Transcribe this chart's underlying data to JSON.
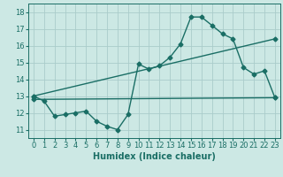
{
  "xlabel": "Humidex (Indice chaleur)",
  "background_color": "#cce8e4",
  "grid_color": "#aaccca",
  "line_color": "#1a6e65",
  "xlim": [
    -0.5,
    23.5
  ],
  "ylim": [
    10.5,
    18.5
  ],
  "xticks": [
    0,
    1,
    2,
    3,
    4,
    5,
    6,
    7,
    8,
    9,
    10,
    11,
    12,
    13,
    14,
    15,
    16,
    17,
    18,
    19,
    20,
    21,
    22,
    23
  ],
  "yticks": [
    11,
    12,
    13,
    14,
    15,
    16,
    17,
    18
  ],
  "line1_x": [
    0,
    1,
    2,
    3,
    4,
    5,
    6,
    7,
    8,
    9,
    10,
    11,
    12,
    13,
    14,
    15,
    16,
    17,
    18,
    19,
    20,
    21,
    22,
    23
  ],
  "line1_y": [
    13.0,
    12.7,
    11.8,
    11.9,
    12.0,
    12.1,
    11.5,
    11.2,
    11.0,
    11.9,
    14.9,
    14.6,
    14.8,
    15.3,
    16.1,
    17.7,
    17.7,
    17.2,
    16.7,
    16.4,
    14.7,
    14.3,
    14.5,
    12.9
  ],
  "line2_x": [
    0,
    23
  ],
  "line2_y": [
    13.0,
    16.4
  ],
  "line3_x": [
    0,
    23
  ],
  "line3_y": [
    12.8,
    12.9
  ],
  "marker": "D",
  "markersize": 2.5,
  "linewidth": 1.0,
  "xlabel_fontsize": 7,
  "tick_fontsize": 6
}
